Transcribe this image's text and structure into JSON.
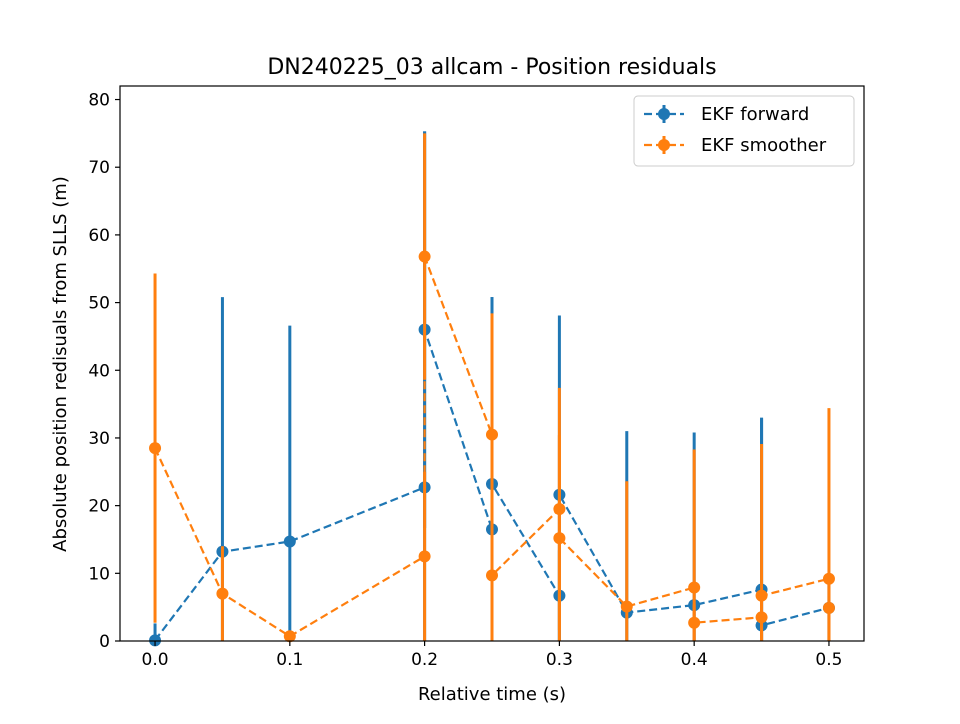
{
  "chart_data": {
    "type": "line",
    "title": "DN240225_03 allcam - Position residuals",
    "xlabel": "Relative time (s)",
    "ylabel": "Absolute position redisuals from SLLS (m)",
    "xlim": [
      -0.026,
      0.526
    ],
    "ylim": [
      0,
      82
    ],
    "x_ticks": [
      0.0,
      0.1,
      0.2,
      0.3,
      0.4,
      0.5
    ],
    "x_tick_labels": [
      "0.0",
      "0.1",
      "0.2",
      "0.3",
      "0.4",
      "0.5"
    ],
    "y_ticks": [
      0,
      10,
      20,
      30,
      40,
      50,
      60,
      70,
      80
    ],
    "y_tick_labels": [
      "0",
      "10",
      "20",
      "30",
      "40",
      "50",
      "60",
      "70",
      "80"
    ],
    "grid": false,
    "legend_position": "top-right",
    "series": [
      {
        "name": "EKF forward",
        "color": "#1f77b4",
        "linestyle": "dashed",
        "marker": "circle",
        "x": [
          0.0,
          0.05,
          0.1,
          0.2,
          0.2,
          0.25,
          0.25,
          0.3,
          0.3,
          0.35,
          0.4,
          0.45,
          0.45,
          0.5
        ],
        "y": [
          0.1,
          13.2,
          14.7,
          22.7,
          46.0,
          16.5,
          23.2,
          6.7,
          21.6,
          4.2,
          5.3,
          7.6,
          2.3,
          4.9
        ],
        "yerr": [
          2.5,
          37.6,
          31.9,
          52.6,
          29.3,
          34.3,
          27.6,
          6.7,
          26.5,
          26.8,
          25.5,
          25.4,
          30.6,
          4.9
        ]
      },
      {
        "name": "EKF smoother",
        "color": "#ff7f0e",
        "linestyle": "dashed",
        "marker": "circle",
        "x": [
          0.0,
          0.05,
          0.1,
          0.2,
          0.2,
          0.25,
          0.25,
          0.3,
          0.3,
          0.35,
          0.4,
          0.4,
          0.45,
          0.45,
          0.5,
          0.5
        ],
        "y": [
          28.5,
          7.0,
          0.7,
          12.5,
          56.8,
          30.5,
          9.7,
          19.5,
          15.2,
          5.1,
          7.9,
          2.7,
          3.5,
          6.7,
          9.2,
          4.9
        ],
        "yerr": [
          25.8,
          7.0,
          0.7,
          12.5,
          18.2,
          17.9,
          9.7,
          17.9,
          15.2,
          18.5,
          20.4,
          2.7,
          3.5,
          22.4,
          25.2,
          4.9
        ]
      }
    ]
  }
}
